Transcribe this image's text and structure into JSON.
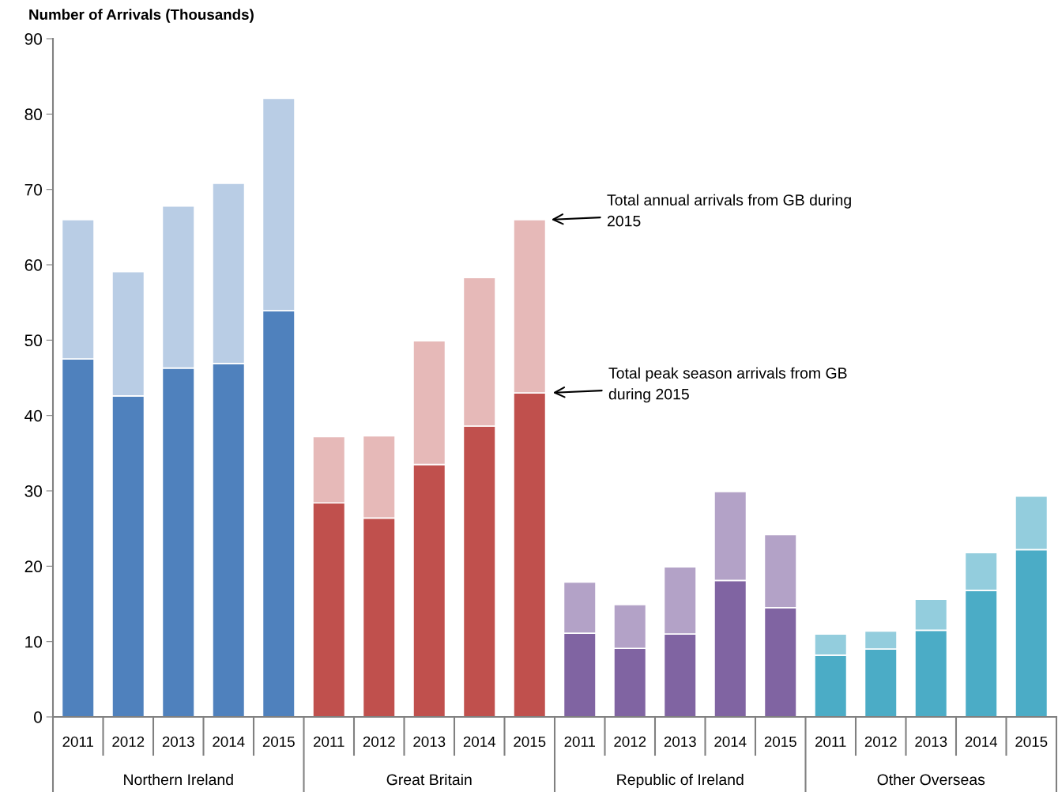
{
  "chart_data": {
    "type": "bar",
    "stacked": true,
    "ylabel": "Number of Arrivals (Thousands)",
    "categories": [
      "2011",
      "2012",
      "2013",
      "2014",
      "2015",
      "2011",
      "2012",
      "2013",
      "2014",
      "2015",
      "2011",
      "2012",
      "2013",
      "2014",
      "2015",
      "2011",
      "2012",
      "2013",
      "2014",
      "2015"
    ],
    "series": [
      {
        "colors": [
          "#4f81bd",
          "#4f81bd",
          "#4f81bd",
          "#4f81bd",
          "#4f81bd",
          "#c0504d",
          "#c0504d",
          "#c0504d",
          "#c0504d",
          "#c0504d",
          "#8064a2",
          "#8064a2",
          "#8064a2",
          "#8064a2",
          "#8064a2",
          "#4bacc6",
          "#4bacc6",
          "#4bacc6",
          "#4bacc6",
          "#4bacc6"
        ],
        "values": [
          47.5,
          42.6,
          46.3,
          46.9,
          53.9,
          28.4,
          26.4,
          33.5,
          38.6,
          43.0,
          11.1,
          9.1,
          11.0,
          18.1,
          14.5,
          8.2,
          9.0,
          11.5,
          16.8,
          22.2
        ]
      },
      {
        "colors": [
          "#b9cde5",
          "#b9cde5",
          "#b9cde5",
          "#b9cde5",
          "#b9cde5",
          "#e6b9b8",
          "#e6b9b8",
          "#e6b9b8",
          "#e6b9b8",
          "#e6b9b8",
          "#b3a2c7",
          "#b3a2c7",
          "#b3a2c7",
          "#b3a2c7",
          "#b3a2c7",
          "#93cddd",
          "#93cddd",
          "#93cddd",
          "#93cddd",
          "#93cddd"
        ],
        "values": [
          18.5,
          16.5,
          21.5,
          23.9,
          28.2,
          8.8,
          10.9,
          16.4,
          19.7,
          23.0,
          6.8,
          5.8,
          8.9,
          11.8,
          9.7,
          2.8,
          2.4,
          4.1,
          5.0,
          7.1
        ]
      }
    ],
    "ylim": [
      0,
      90
    ],
    "yticks": [
      0,
      10,
      20,
      30,
      40,
      50,
      60,
      70,
      80,
      90
    ],
    "grid": false,
    "legend": false,
    "annotations": [
      "Total annual arrivals from GB during\n2015",
      "Total peak season arrivals from GB\nduring 2015",
      "Northern Ireland",
      "Great Britain",
      "Republic of Ireland",
      "Other Overseas"
    ]
  }
}
